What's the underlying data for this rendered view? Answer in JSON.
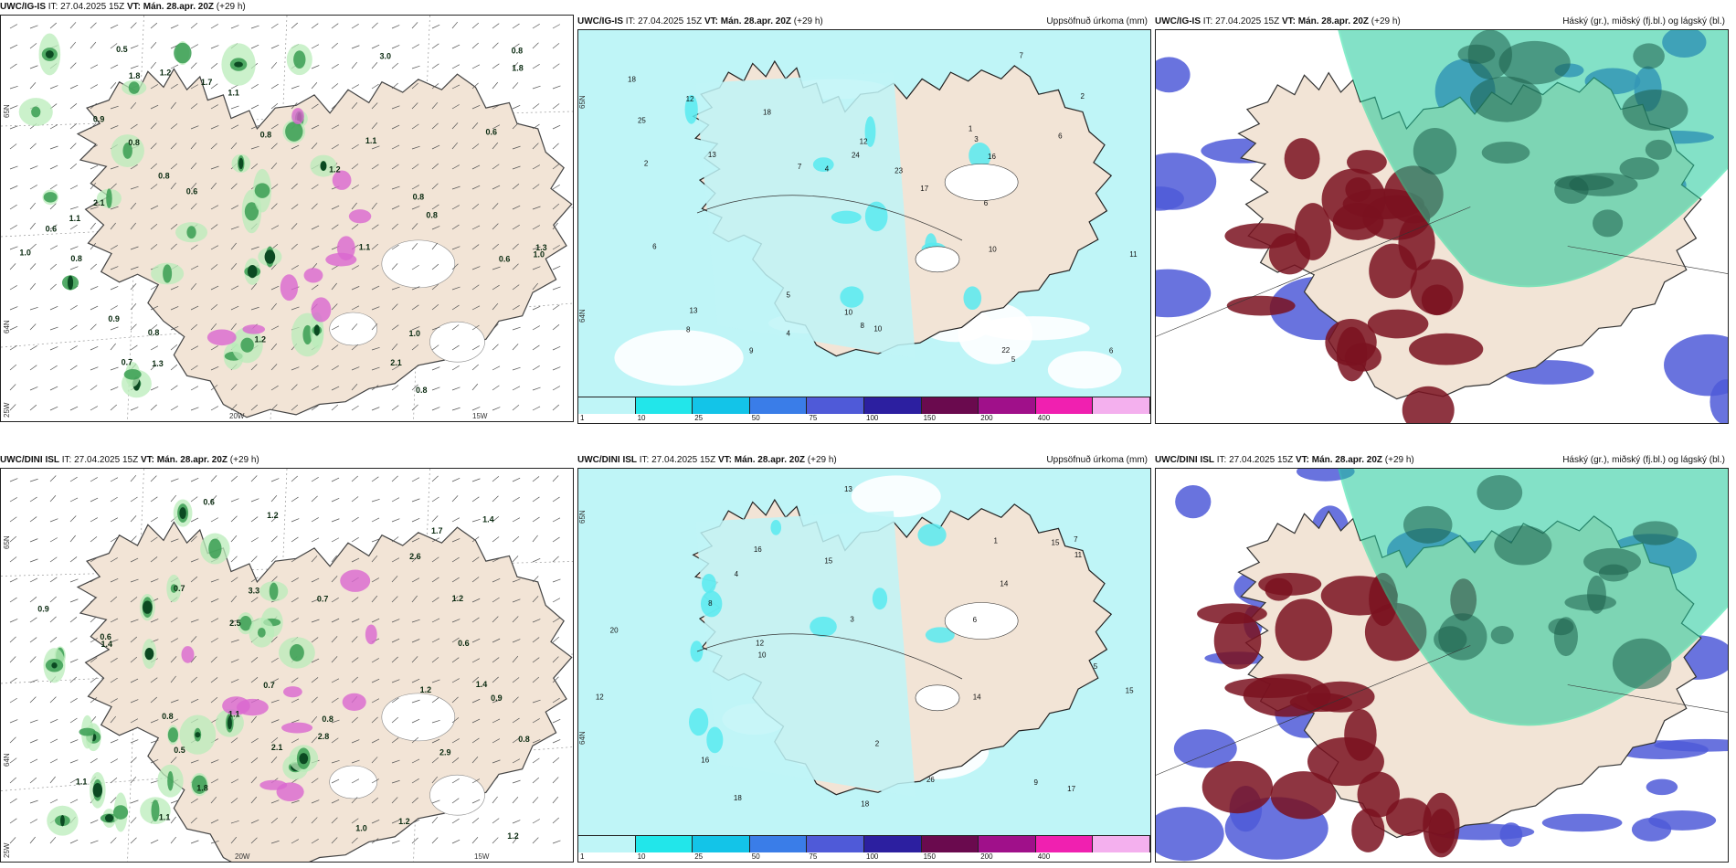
{
  "panels": [
    {
      "id": "top-left",
      "model": "UWC/IG-IS",
      "it_label": "IT: 27.04.2025 15Z",
      "vt_label": "VT:",
      "valid": "Mán. 28.apr. 20Z",
      "lead": "(+29 h)",
      "title": "",
      "lat_labels": [
        "65N",
        "64N"
      ],
      "lon_labels": [
        "20W",
        "15W"
      ],
      "corner_lon": "25W",
      "values": [
        "0.6",
        "0.6",
        "0.8",
        "0.9",
        "0.8",
        "3.0",
        "0.8",
        "0.8",
        "0.8",
        "1.7",
        "0.8",
        "0.7",
        "0.6",
        "0.6",
        "0.8",
        "1.2",
        "1.3",
        "1.0",
        "2.1",
        "1.1",
        "1.8",
        "1.2",
        "1.1",
        "1.0",
        "0.8",
        "1.1",
        "1.8",
        "1.0",
        "1.2",
        "0.9",
        "0.5",
        "0.8",
        "1.1",
        "2.1",
        "1.3"
      ]
    },
    {
      "id": "top-middle",
      "model": "UWC/IG-IS",
      "it_label": "IT: 27.04.2025 15Z",
      "vt_label": "VT:",
      "valid": "Mán. 28.apr. 20Z",
      "lead": "(+29 h)",
      "title": "Uppsöfnuð úrkoma (mm)",
      "lat_labels": [
        "65N",
        "64N"
      ],
      "values": [
        "8",
        "16",
        "2",
        "10",
        "13",
        "5",
        "18",
        "4",
        "6",
        "7",
        "12",
        "10",
        "11",
        "6",
        "25",
        "24",
        "18",
        "22",
        "13",
        "12",
        "6",
        "4",
        "17",
        "10",
        "23",
        "1",
        "3",
        "2",
        "5",
        "6",
        "7",
        "8",
        "9"
      ]
    },
    {
      "id": "top-right",
      "model": "UWC/IG-IS",
      "it_label": "IT: 27.04.2025 15Z",
      "vt_label": "VT:",
      "valid": "Mán. 28.apr. 20Z",
      "lead": "(+29 h)",
      "title": "Háský (gr.), miðský (fj.bl.) og lágský (bl.)"
    },
    {
      "id": "bottom-left",
      "model": "UWC/DINI ISL",
      "it_label": "IT: 27.04.2025 15Z",
      "vt_label": "VT:",
      "valid": "Mán. 28.apr. 20Z",
      "lead": "(+29 h)",
      "title": "",
      "lat_labels": [
        "65N",
        "64N"
      ],
      "lon_labels": [
        "20W",
        "15W"
      ],
      "corner_lon": "25W",
      "values": [
        "2.6",
        "0.8",
        "0.7",
        "1.1",
        "1.4",
        "1.2",
        "0.6",
        "1.2",
        "0.8",
        "1.8",
        "0.8",
        "1.2",
        "0.7",
        "2.1",
        "1.0",
        "0.6",
        "0.9",
        "2.9",
        "0.6",
        "1.4",
        "0.5",
        "1.1",
        "1.2",
        "3.3",
        "0.7",
        "1.7",
        "2.8",
        "1.1",
        "2.5",
        "0.9",
        "1.2",
        "1.4"
      ]
    },
    {
      "id": "bottom-middle",
      "model": "UWC/DINI ISL",
      "it_label": "IT: 27.04.2025 15Z",
      "vt_label": "VT:",
      "valid": "Mán. 28.apr. 20Z",
      "lead": "(+29 h)",
      "title": "Uppsöfnuð úrkoma (mm)",
      "lat_labels": [
        "65N",
        "64N"
      ],
      "values": [
        "4",
        "6",
        "18",
        "15",
        "13",
        "14",
        "10",
        "7",
        "12",
        "15",
        "16",
        "14",
        "16",
        "20",
        "18",
        "12",
        "15",
        "17",
        "26",
        "9",
        "5",
        "3",
        "2",
        "1",
        "8",
        "11"
      ]
    },
    {
      "id": "bottom-right",
      "model": "UWC/DINI ISL",
      "it_label": "IT: 27.04.2025 15Z",
      "vt_label": "VT:",
      "valid": "Mán. 28.apr. 20Z",
      "lead": "(+29 h)",
      "title": "Háský (gr.), miðský (fj.bl.) og lágský (bl.)"
    }
  ],
  "colorbar": {
    "ticks": [
      "1",
      "10",
      "25",
      "50",
      "75",
      "100",
      "150",
      "200",
      "400"
    ],
    "colors": [
      "#bff5f7",
      "#22e6ea",
      "#13c4e8",
      "#3a7de8",
      "#4f5ad8",
      "#2c1fa0",
      "#6a0a4e",
      "#a0108a",
      "#f020b0",
      "#f4b0ee"
    ]
  },
  "palette": {
    "land": "#f2e4d6",
    "snow": "#ffffff",
    "precip_light": "#bff5f7",
    "precip_mid": "#58eaf0",
    "green_light": "#b9ecb9",
    "green_mid": "#3a9d52",
    "green_dark": "#0b4a22",
    "magenta": "#d966cf",
    "high_cloud": "#1ec99a",
    "mid_cloud": "#7a1220",
    "low_cloud": "#4f5ad8"
  }
}
